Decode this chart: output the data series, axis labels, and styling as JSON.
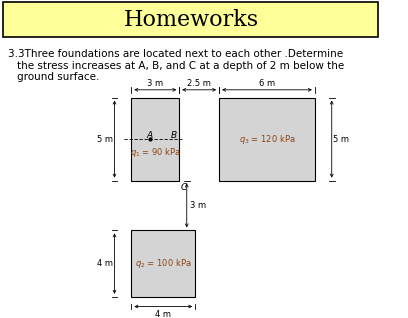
{
  "title": "Homeworks",
  "title_bg": "#FFFF99",
  "problem_text_line1": "3.3Three foundations are located next to each other .Determine",
  "problem_text_line2": "the stress increases at A, B, and C at a depth of 2 m below the",
  "problem_text_line3": "ground surface.",
  "label_q1": "$q_1$ = 90 kPa",
  "label_q2": "$q_2$ = 100 kPa",
  "label_q3": "$q_3$ = 120 kPa",
  "label_A": "A",
  "label_B": "B",
  "label_C": "C",
  "dim_3m": "3 m",
  "dim_25m": "2.5 m",
  "dim_6m": "6 m",
  "dim_5m_left": "5 m",
  "dim_5m_right": "5 m",
  "dim_3m_vert": "3 m",
  "dim_4m_vert": "4 m",
  "dim_4m_horiz": "4 m",
  "bg_color": "#ffffff",
  "box_fill": "#d4d4d4",
  "box_edge": "#000000",
  "title_font_size": 16,
  "text_font_size": 7.5,
  "dim_font_size": 6,
  "label_font_size": 6.5,
  "q_font_size": 6,
  "q_color": "#8B4513"
}
